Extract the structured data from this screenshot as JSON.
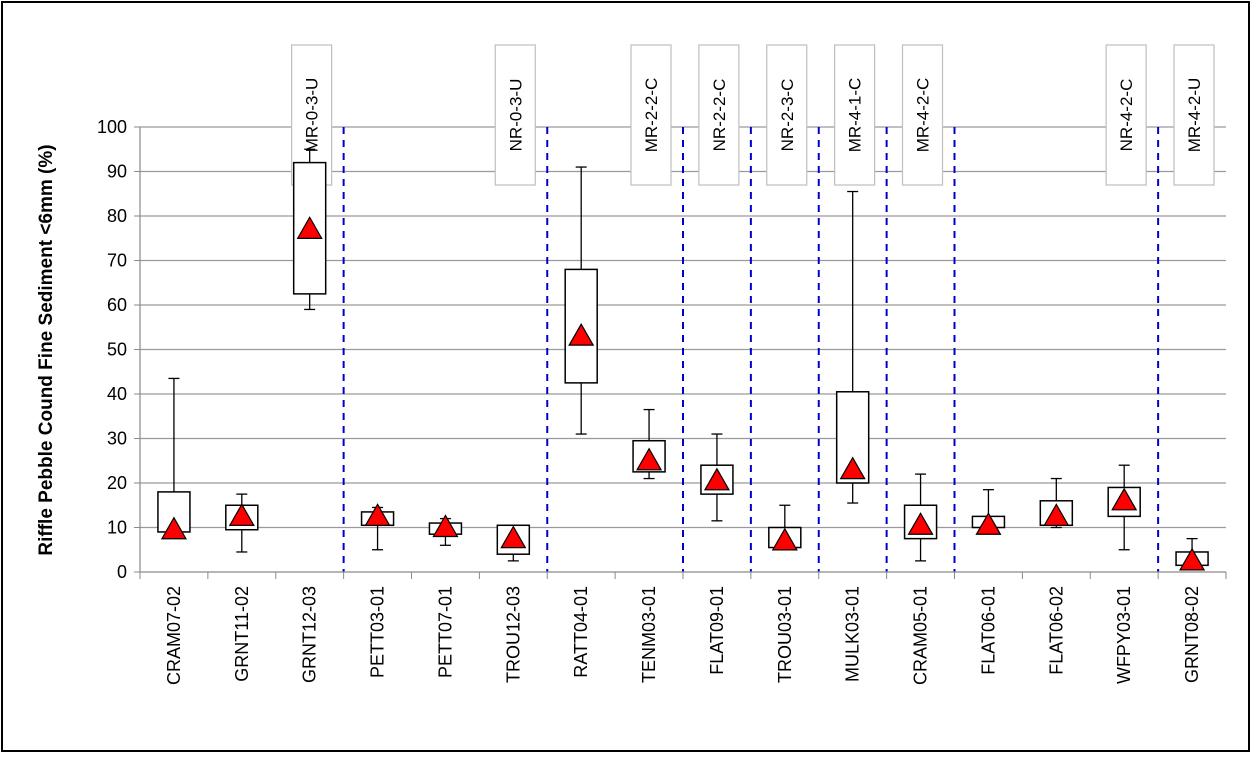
{
  "chart_data": {
    "type": "boxplot",
    "title": "",
    "xlabel": "",
    "ylabel": "Riffle Pebble Cound Fine Sediment <6mm (%)",
    "ylim": [
      0,
      100
    ],
    "yticks": [
      0,
      10,
      20,
      30,
      40,
      50,
      60,
      70,
      80,
      90,
      100
    ],
    "grid": "horizontal",
    "mean_marker": "red-triangle",
    "categories": [
      "CRAM07-02",
      "GRNT11-02",
      "GRNT12-03",
      "PETT03-01",
      "PETT07-01",
      "TROU12-03",
      "RATT04-01",
      "TENM03-01",
      "FLAT09-01",
      "TROU03-01",
      "MULK03-01",
      "CRAM05-01",
      "FLAT06-01",
      "FLAT06-02",
      "WFPY03-01",
      "GRNT08-02"
    ],
    "boxes": [
      {
        "min": 9,
        "q1": 9,
        "q3": 18,
        "max": 43.5,
        "mean": 9.5
      },
      {
        "min": 4.5,
        "q1": 9.5,
        "q3": 15,
        "max": 17.5,
        "mean": 12.5
      },
      {
        "min": 59,
        "q1": 62.5,
        "q3": 92,
        "max": 95,
        "mean": 77
      },
      {
        "min": 5,
        "q1": 10.5,
        "q3": 13.5,
        "max": 14.5,
        "mean": 12.5
      },
      {
        "min": 6,
        "q1": 8.5,
        "q3": 11,
        "max": 12,
        "mean": 10
      },
      {
        "min": 2.5,
        "q1": 4,
        "q3": 10.5,
        "max": 10.5,
        "mean": 7.5
      },
      {
        "min": 31,
        "q1": 42.5,
        "q3": 68,
        "max": 91,
        "mean": 53
      },
      {
        "min": 21,
        "q1": 22.5,
        "q3": 29.5,
        "max": 36.5,
        "mean": 25
      },
      {
        "min": 11.5,
        "q1": 17.5,
        "q3": 24,
        "max": 31,
        "mean": 20.5
      },
      {
        "min": 5,
        "q1": 5.5,
        "q3": 10,
        "max": 15,
        "mean": 7
      },
      {
        "min": 15.5,
        "q1": 20,
        "q3": 40.5,
        "max": 85.5,
        "mean": 23
      },
      {
        "min": 2.5,
        "q1": 7.5,
        "q3": 15,
        "max": 22,
        "mean": 10.5
      },
      {
        "min": 10,
        "q1": 10,
        "q3": 12.5,
        "max": 18.5,
        "mean": 10.5
      },
      {
        "min": 10,
        "q1": 10.5,
        "q3": 16,
        "max": 21,
        "mean": 12.5
      },
      {
        "min": 5,
        "q1": 12.5,
        "q3": 19,
        "max": 24,
        "mean": 16
      },
      {
        "min": 1,
        "q1": 1.5,
        "q3": 4.5,
        "max": 7.5,
        "mean": 2.5
      }
    ],
    "groups": [
      {
        "label": "MR-0-3-U",
        "start": 0,
        "end": 2
      },
      {
        "label": "NR-0-3-U",
        "start": 3,
        "end": 5
      },
      {
        "label": "MR-2-2-C",
        "start": 6,
        "end": 7
      },
      {
        "label": "NR-2-2-C",
        "start": 8,
        "end": 8
      },
      {
        "label": "NR-2-3-C",
        "start": 9,
        "end": 9
      },
      {
        "label": "MR-4-1-C",
        "start": 10,
        "end": 10
      },
      {
        "label": "MR-4-2-C",
        "start": 11,
        "end": 11
      },
      {
        "label": "NR-4-2-C",
        "start": 12,
        "end": 14
      },
      {
        "label": "MR-4-2-U",
        "start": 15,
        "end": 15
      }
    ],
    "colors": {
      "mean": "#ff0000",
      "separator": "#0000cc",
      "grid": "#9a9a9a",
      "box": "#000000"
    }
  }
}
